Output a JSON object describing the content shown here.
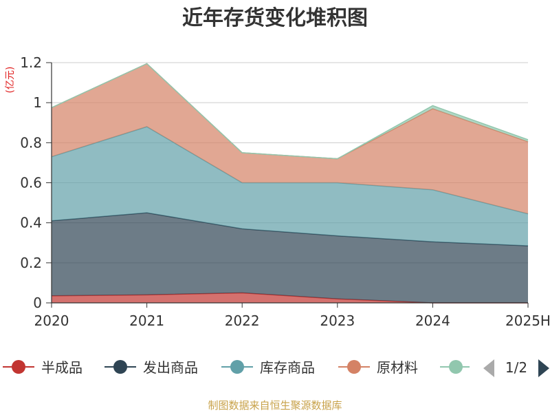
{
  "chart_data": {
    "type": "area",
    "stacked": true,
    "title": "近年存货变化堆积图",
    "unit": "(亿元)",
    "categories": [
      "2020",
      "2021",
      "2022",
      "2023",
      "2024",
      "2025H"
    ],
    "series": [
      {
        "name": "半成品",
        "color": "#c23531",
        "values": [
          0.035,
          0.04,
          0.05,
          0.02,
          0.0,
          0.0
        ]
      },
      {
        "name": "发出商品",
        "color": "#2f4554",
        "values": [
          0.375,
          0.41,
          0.32,
          0.315,
          0.305,
          0.285
        ]
      },
      {
        "name": "库存商品",
        "color": "#61a0a8",
        "values": [
          0.32,
          0.43,
          0.23,
          0.265,
          0.26,
          0.16
        ]
      },
      {
        "name": "原材料",
        "color": "#d48265",
        "values": [
          0.245,
          0.315,
          0.15,
          0.12,
          0.405,
          0.36
        ]
      },
      {
        "color": "#91c7ae",
        "values": [
          0.0,
          0.0,
          0.0,
          0.0,
          0.015,
          0.01
        ]
      }
    ],
    "ylim": [
      0,
      1.2
    ],
    "yticks": [
      "0",
      "0.2",
      "0.4",
      "0.6",
      "0.8",
      "1",
      "1.2"
    ],
    "grid": true,
    "legend": {
      "position": "bottom",
      "page": "1/2"
    }
  },
  "footer": {
    "source": "制图数据来自恒生聚源数据库"
  },
  "colors": {
    "title": "#333333",
    "unit": "#e01f1f",
    "footer": "#c8a24a",
    "axis": "#333333",
    "grid": "#cccccc",
    "pager_active": "#2f4554",
    "pager_inactive": "#aaaaaa"
  }
}
